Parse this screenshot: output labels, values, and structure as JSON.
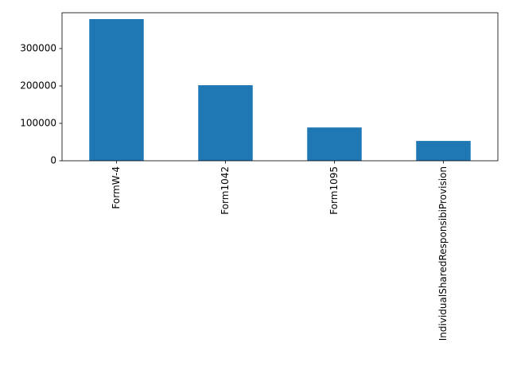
{
  "chart_data": {
    "type": "bar",
    "categories": [
      "FormW-4",
      "Form1042",
      "Form1095",
      "IndividualSharedResponsibiProvision"
    ],
    "values": [
      378700,
      202000,
      89000,
      53000
    ],
    "color": "#1f77b4",
    "ylim": [
      0,
      395700
    ],
    "yticks": [
      0,
      100000,
      200000,
      300000
    ],
    "grid": false
  }
}
